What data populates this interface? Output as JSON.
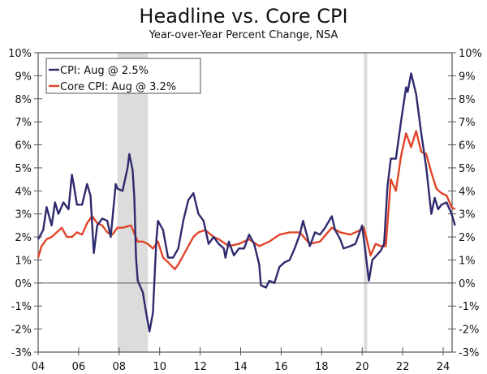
{
  "chart_data": {
    "type": "line",
    "title": "Headline vs. Core CPI",
    "subtitle": "Year-over-Year Percent Change, NSA",
    "ylim": [
      -3,
      10
    ],
    "yticks": [
      "10%",
      "9%",
      "8%",
      "7%",
      "6%",
      "5%",
      "4%",
      "3%",
      "2%",
      "1%",
      "0%",
      "-1%",
      "-2%",
      "-3%"
    ],
    "xticks": [
      "04",
      "06",
      "08",
      "10",
      "12",
      "14",
      "16",
      "18",
      "20",
      "22",
      "24"
    ],
    "xlim": [
      "2004-01",
      "2025-01"
    ],
    "grid": false,
    "legend_position": "top-left",
    "recessions": [
      [
        "2007-12",
        "2009-06"
      ],
      [
        "2020-02",
        "2020-04"
      ]
    ],
    "series": [
      {
        "name": "CPI: Aug @ 2.5%",
        "color": "#2e2a6e",
        "points": [
          [
            "2004-01",
            1.9
          ],
          [
            "2004-04",
            2.3
          ],
          [
            "2004-06",
            3.3
          ],
          [
            "2004-09",
            2.5
          ],
          [
            "2004-11",
            3.5
          ],
          [
            "2005-01",
            3.0
          ],
          [
            "2005-04",
            3.5
          ],
          [
            "2005-07",
            3.2
          ],
          [
            "2005-09",
            4.7
          ],
          [
            "2005-10",
            4.3
          ],
          [
            "2005-12",
            3.4
          ],
          [
            "2006-03",
            3.4
          ],
          [
            "2006-06",
            4.3
          ],
          [
            "2006-08",
            3.8
          ],
          [
            "2006-10",
            1.3
          ],
          [
            "2006-12",
            2.5
          ],
          [
            "2007-03",
            2.8
          ],
          [
            "2007-06",
            2.7
          ],
          [
            "2007-08",
            2.0
          ],
          [
            "2007-11",
            4.3
          ],
          [
            "2007-12",
            4.1
          ],
          [
            "2008-03",
            4.0
          ],
          [
            "2008-06",
            5.0
          ],
          [
            "2008-07",
            5.6
          ],
          [
            "2008-09",
            4.9
          ],
          [
            "2008-10",
            3.7
          ],
          [
            "2008-11",
            1.1
          ],
          [
            "2008-12",
            0.1
          ],
          [
            "2009-03",
            -0.4
          ],
          [
            "2009-05",
            -1.3
          ],
          [
            "2009-07",
            -2.1
          ],
          [
            "2009-09",
            -1.3
          ],
          [
            "2009-11",
            1.8
          ],
          [
            "2009-12",
            2.7
          ],
          [
            "2010-03",
            2.3
          ],
          [
            "2010-06",
            1.1
          ],
          [
            "2010-09",
            1.1
          ],
          [
            "2010-12",
            1.5
          ],
          [
            "2011-03",
            2.7
          ],
          [
            "2011-06",
            3.6
          ],
          [
            "2011-09",
            3.9
          ],
          [
            "2011-12",
            3.0
          ],
          [
            "2012-03",
            2.7
          ],
          [
            "2012-06",
            1.7
          ],
          [
            "2012-09",
            2.0
          ],
          [
            "2012-12",
            1.7
          ],
          [
            "2013-03",
            1.5
          ],
          [
            "2013-04",
            1.1
          ],
          [
            "2013-06",
            1.8
          ],
          [
            "2013-09",
            1.2
          ],
          [
            "2013-12",
            1.5
          ],
          [
            "2014-03",
            1.5
          ],
          [
            "2014-06",
            2.1
          ],
          [
            "2014-09",
            1.7
          ],
          [
            "2014-12",
            0.8
          ],
          [
            "2015-01",
            -0.1
          ],
          [
            "2015-04",
            -0.2
          ],
          [
            "2015-06",
            0.1
          ],
          [
            "2015-09",
            0.0
          ],
          [
            "2015-12",
            0.7
          ],
          [
            "2016-03",
            0.9
          ],
          [
            "2016-06",
            1.0
          ],
          [
            "2016-09",
            1.5
          ],
          [
            "2016-12",
            2.1
          ],
          [
            "2017-02",
            2.7
          ],
          [
            "2017-06",
            1.6
          ],
          [
            "2017-09",
            2.2
          ],
          [
            "2017-12",
            2.1
          ],
          [
            "2018-03",
            2.4
          ],
          [
            "2018-07",
            2.9
          ],
          [
            "2018-09",
            2.3
          ],
          [
            "2018-12",
            1.9
          ],
          [
            "2019-02",
            1.5
          ],
          [
            "2019-06",
            1.6
          ],
          [
            "2019-09",
            1.7
          ],
          [
            "2019-12",
            2.3
          ],
          [
            "2020-01",
            2.5
          ],
          [
            "2020-05",
            0.1
          ],
          [
            "2020-07",
            1.0
          ],
          [
            "2020-12",
            1.4
          ],
          [
            "2021-02",
            1.7
          ],
          [
            "2021-04",
            4.2
          ],
          [
            "2021-06",
            5.4
          ],
          [
            "2021-09",
            5.4
          ],
          [
            "2021-12",
            7.0
          ],
          [
            "2022-03",
            8.5
          ],
          [
            "2022-04",
            8.3
          ],
          [
            "2022-06",
            9.1
          ],
          [
            "2022-09",
            8.2
          ],
          [
            "2022-12",
            6.5
          ],
          [
            "2023-03",
            5.0
          ],
          [
            "2023-06",
            3.0
          ],
          [
            "2023-08",
            3.7
          ],
          [
            "2023-10",
            3.2
          ],
          [
            "2023-12",
            3.4
          ],
          [
            "2024-03",
            3.5
          ],
          [
            "2024-06",
            3.0
          ],
          [
            "2024-08",
            2.5
          ]
        ]
      },
      {
        "name": "Core CPI: Aug @ 3.2%",
        "color": "#e0452a",
        "points": [
          [
            "2004-01",
            1.1
          ],
          [
            "2004-03",
            1.6
          ],
          [
            "2004-06",
            1.9
          ],
          [
            "2004-09",
            2.0
          ],
          [
            "2004-12",
            2.2
          ],
          [
            "2005-03",
            2.4
          ],
          [
            "2005-06",
            2.0
          ],
          [
            "2005-09",
            2.0
          ],
          [
            "2005-12",
            2.2
          ],
          [
            "2006-03",
            2.1
          ],
          [
            "2006-06",
            2.6
          ],
          [
            "2006-09",
            2.9
          ],
          [
            "2006-12",
            2.6
          ],
          [
            "2007-03",
            2.5
          ],
          [
            "2007-06",
            2.2
          ],
          [
            "2007-09",
            2.1
          ],
          [
            "2007-12",
            2.4
          ],
          [
            "2008-03",
            2.4
          ],
          [
            "2008-08",
            2.5
          ],
          [
            "2008-12",
            1.8
          ],
          [
            "2009-03",
            1.8
          ],
          [
            "2009-06",
            1.7
          ],
          [
            "2009-09",
            1.5
          ],
          [
            "2009-12",
            1.8
          ],
          [
            "2010-03",
            1.1
          ],
          [
            "2010-06",
            0.9
          ],
          [
            "2010-10",
            0.6
          ],
          [
            "2010-12",
            0.8
          ],
          [
            "2011-03",
            1.2
          ],
          [
            "2011-06",
            1.6
          ],
          [
            "2011-09",
            2.0
          ],
          [
            "2011-12",
            2.2
          ],
          [
            "2012-04",
            2.3
          ],
          [
            "2012-09",
            2.0
          ],
          [
            "2012-12",
            1.9
          ],
          [
            "2013-06",
            1.6
          ],
          [
            "2013-12",
            1.7
          ],
          [
            "2014-06",
            1.9
          ],
          [
            "2014-12",
            1.6
          ],
          [
            "2015-06",
            1.8
          ],
          [
            "2015-12",
            2.1
          ],
          [
            "2016-06",
            2.2
          ],
          [
            "2016-12",
            2.2
          ],
          [
            "2017-06",
            1.7
          ],
          [
            "2017-12",
            1.8
          ],
          [
            "2018-07",
            2.4
          ],
          [
            "2018-12",
            2.2
          ],
          [
            "2019-06",
            2.1
          ],
          [
            "2019-12",
            2.3
          ],
          [
            "2020-02",
            2.4
          ],
          [
            "2020-06",
            1.2
          ],
          [
            "2020-09",
            1.7
          ],
          [
            "2020-12",
            1.6
          ],
          [
            "2021-03",
            1.6
          ],
          [
            "2021-06",
            4.5
          ],
          [
            "2021-09",
            4.0
          ],
          [
            "2021-12",
            5.5
          ],
          [
            "2022-03",
            6.5
          ],
          [
            "2022-06",
            5.9
          ],
          [
            "2022-09",
            6.6
          ],
          [
            "2022-12",
            5.7
          ],
          [
            "2023-03",
            5.6
          ],
          [
            "2023-06",
            4.8
          ],
          [
            "2023-09",
            4.1
          ],
          [
            "2023-12",
            3.9
          ],
          [
            "2024-03",
            3.8
          ],
          [
            "2024-06",
            3.3
          ],
          [
            "2024-08",
            3.2
          ]
        ]
      }
    ]
  }
}
